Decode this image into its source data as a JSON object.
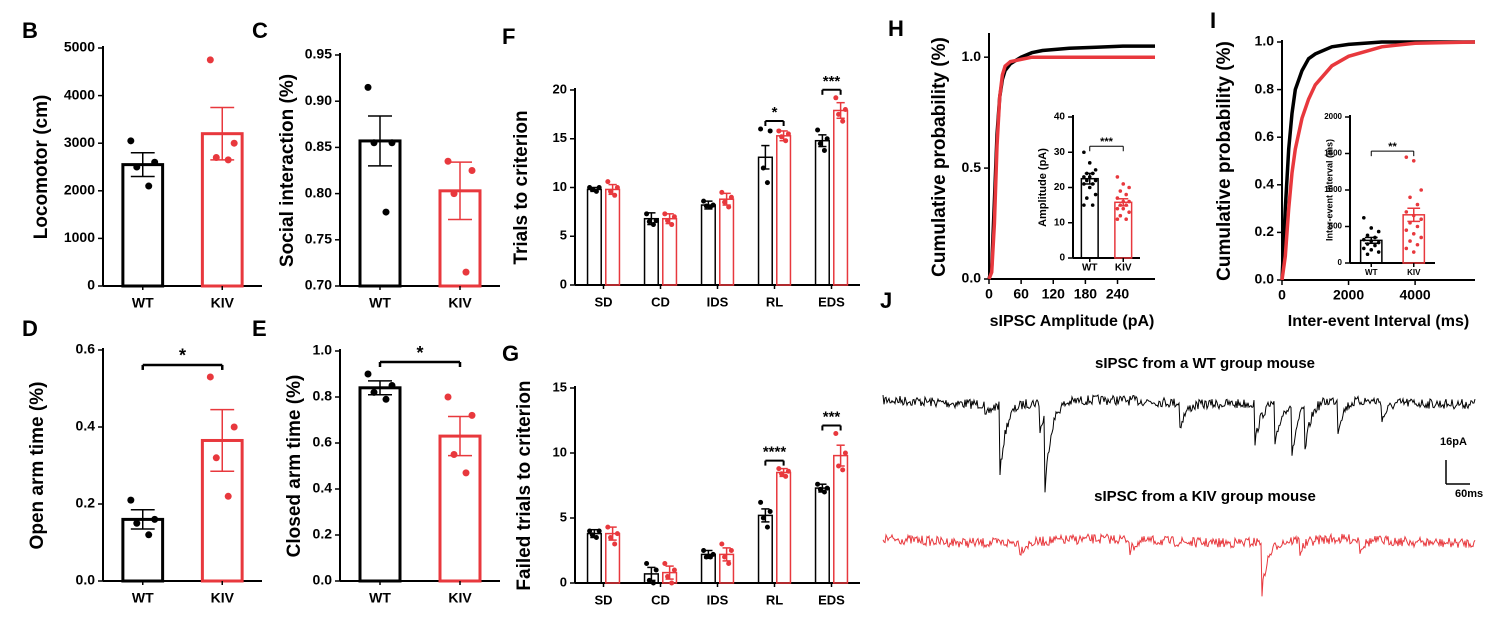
{
  "chart_data": [
    {
      "type": "bar",
      "panel": "B",
      "ylabel": "Locomotor (cm)",
      "categories": [
        "WT",
        "KIV"
      ],
      "colors": [
        "#000000",
        "#e8383d"
      ],
      "values": [
        2550,
        3200
      ],
      "errors": [
        250,
        550
      ],
      "points": [
        [
          3050,
          2600,
          2500,
          2100
        ],
        [
          4750,
          3000,
          2700,
          2650
        ]
      ],
      "ylim": [
        0,
        5000
      ],
      "yticks": [
        0,
        1000,
        2000,
        3000,
        4000,
        5000
      ]
    },
    {
      "type": "bar",
      "panel": "C",
      "ylabel": "Social interaction (%)",
      "categories": [
        "WT",
        "KIV"
      ],
      "colors": [
        "#000000",
        "#e8383d"
      ],
      "values": [
        0.857,
        0.803
      ],
      "errors": [
        0.027,
        0.031
      ],
      "points": [
        [
          0.915,
          0.855,
          0.855,
          0.78
        ],
        [
          0.835,
          0.825,
          0.8,
          0.715
        ]
      ],
      "ylim": [
        0.7,
        0.95
      ],
      "yticks": [
        {
          "value": 0.7,
          "label": "0.70"
        },
        0.75,
        {
          "value": 0.8,
          "label": "0.80"
        },
        0.85,
        {
          "value": 0.9,
          "label": "0.90"
        },
        0.95
      ]
    },
    {
      "type": "bar",
      "panel": "D",
      "ylabel": "Open arm time (%)",
      "categories": [
        "WT",
        "KIV"
      ],
      "colors": [
        "#000000",
        "#e8383d"
      ],
      "values": [
        0.16,
        0.365
      ],
      "errors": [
        0.025,
        0.08
      ],
      "points": [
        [
          0.21,
          0.16,
          0.15,
          0.12
        ],
        [
          0.53,
          0.4,
          0.32,
          0.22
        ]
      ],
      "annotation": "*",
      "ylim": [
        0,
        0.6
      ],
      "yticks": [
        {
          "value": 0,
          "label": "0.0"
        },
        0.2,
        0.4,
        0.6
      ]
    },
    {
      "type": "bar",
      "panel": "E",
      "ylabel": "Closed arm time (%)",
      "categories": [
        "WT",
        "KIV"
      ],
      "colors": [
        "#000000",
        "#e8383d"
      ],
      "values": [
        0.84,
        0.63
      ],
      "errors": [
        0.03,
        0.085
      ],
      "points": [
        [
          0.9,
          0.85,
          0.82,
          0.79
        ],
        [
          0.8,
          0.72,
          0.55,
          0.47
        ]
      ],
      "annotation": "*",
      "ylim": [
        0,
        1.0
      ],
      "yticks": [
        {
          "value": 0,
          "label": "0.0"
        },
        0.2,
        0.4,
        0.6,
        0.8,
        {
          "value": 1.0,
          "label": "1.0"
        }
      ]
    },
    {
      "type": "grouped-bar",
      "panel": "F",
      "ylabel": "Trials to criterion",
      "categories": [
        "SD",
        "CD",
        "IDS",
        "RL",
        "EDS"
      ],
      "series": [
        {
          "color": "#000000",
          "values": [
            9.8,
            6.8,
            8.2,
            13.1,
            14.8
          ],
          "errors": [
            0.2,
            0.6,
            0.4,
            1.2,
            0.6
          ],
          "points": [
            [
              10,
              10,
              9.8,
              9.6
            ],
            [
              7.3,
              6.6,
              6.5,
              6.2
            ],
            [
              8.6,
              8.2,
              8.1,
              8
            ],
            [
              16,
              15.8,
              12,
              10.5
            ],
            [
              15.9,
              15,
              14.5,
              13.8
            ]
          ]
        },
        {
          "color": "#e8383d",
          "values": [
            9.8,
            6.8,
            8.8,
            15.3,
            17.9
          ],
          "errors": [
            0.5,
            0.5,
            0.6,
            0.5,
            0.8
          ],
          "points": [
            [
              10.6,
              10,
              9.6,
              9.2
            ],
            [
              7.3,
              7,
              6.6,
              6.2
            ],
            [
              9.5,
              9,
              8.5,
              8
            ],
            [
              15.8,
              15.5,
              15.2,
              14.8
            ],
            [
              19.2,
              18,
              17.5,
              16.8
            ]
          ]
        }
      ],
      "annotations": [
        null,
        null,
        null,
        "*",
        "***"
      ],
      "ylim": [
        0,
        20
      ],
      "yticks": [
        0,
        5,
        10,
        15,
        20
      ]
    },
    {
      "type": "grouped-bar",
      "panel": "G",
      "ylabel": "Failed trials to criterion",
      "categories": [
        "SD",
        "CD",
        "IDS",
        "RL",
        "EDS"
      ],
      "series": [
        {
          "color": "#000000",
          "values": [
            3.8,
            0.7,
            2.2,
            5.2,
            7.3
          ],
          "errors": [
            0.3,
            0.5,
            0.3,
            0.5,
            0.3
          ],
          "points": [
            [
              4,
              4,
              3.7,
              3.5
            ],
            [
              1.5,
              1,
              0.2,
              0
            ],
            [
              2.5,
              2.2,
              2,
              2
            ],
            [
              6.2,
              5.5,
              5,
              4.3
            ],
            [
              7.6,
              7.3,
              7.2,
              7
            ]
          ]
        },
        {
          "color": "#e8383d",
          "values": [
            3.8,
            0.8,
            2.2,
            8.5,
            9.8
          ],
          "errors": [
            0.5,
            0.5,
            0.5,
            0.3,
            0.8
          ],
          "points": [
            [
              4.3,
              3.8,
              3.5,
              3
            ],
            [
              1.5,
              1,
              0.5,
              0
            ],
            [
              3,
              2.5,
              2,
              1.5
            ],
            [
              8.8,
              8.6,
              8.4,
              8.2
            ],
            [
              11.5,
              10,
              9,
              8.7
            ]
          ]
        }
      ],
      "annotations": [
        null,
        null,
        null,
        "****",
        "***"
      ],
      "ylim": [
        0,
        15
      ],
      "yticks": [
        0,
        5,
        10,
        15
      ]
    },
    {
      "type": "line",
      "panel": "H",
      "ylabel": "Cumulative probability (%)",
      "xlabel": "sIPSC Amplitude (pA)",
      "x": [
        0,
        5,
        10,
        15,
        20,
        25,
        30,
        40,
        60,
        80,
        100,
        150,
        200,
        250,
        310
      ],
      "series": [
        {
          "color": "#000000",
          "values": [
            0,
            0.05,
            0.35,
            0.65,
            0.82,
            0.9,
            0.94,
            0.97,
            1.0,
            1.02,
            1.03,
            1.04,
            1.045,
            1.05,
            1.05
          ]
        },
        {
          "color": "#e8383d",
          "values": [
            0,
            0.03,
            0.25,
            0.6,
            0.82,
            0.92,
            0.96,
            0.98,
            0.99,
            1.0,
            1.0,
            1.0,
            1.0,
            1.0,
            1.0
          ]
        }
      ],
      "xlim": [
        0,
        310
      ],
      "xticks": [
        0,
        60,
        120,
        180,
        240
      ],
      "ylim": [
        0,
        1.1
      ],
      "yticks": [
        {
          "value": 0,
          "label": "0.0"
        },
        0.5,
        {
          "value": 1.0,
          "label": "1.0"
        }
      ],
      "inset": {
        "type": "bar",
        "ylabel": "Amplitude (pA)",
        "categories": [
          "WT",
          "KIV"
        ],
        "colors": [
          "#000000",
          "#e8383d"
        ],
        "values": [
          22.5,
          15.8
        ],
        "errors": [
          1.5,
          1.0
        ],
        "points": [
          [
            30,
            27,
            25,
            24,
            24,
            23,
            23,
            22,
            22,
            21,
            21,
            20,
            18,
            17,
            15,
            15
          ],
          [
            23,
            21,
            20,
            19,
            18,
            17,
            16,
            16,
            15,
            15,
            14,
            14,
            13,
            12,
            11,
            11
          ]
        ],
        "annotation": "***",
        "ylim": [
          0,
          40
        ],
        "yticks": [
          0,
          10,
          20,
          30,
          40
        ]
      }
    },
    {
      "type": "line",
      "panel": "I",
      "ylabel": "Cumulative probability (%)",
      "xlabel": "Inter-event Interval (ms)",
      "x": [
        0,
        100,
        200,
        300,
        400,
        600,
        800,
        1000,
        1500,
        2000,
        3000,
        4000,
        5800
      ],
      "series": [
        {
          "color": "#000000",
          "values": [
            0,
            0.3,
            0.55,
            0.7,
            0.8,
            0.88,
            0.93,
            0.95,
            0.98,
            0.99,
            1.0,
            1.0,
            1.0
          ]
        },
        {
          "color": "#e8383d",
          "values": [
            0,
            0.1,
            0.3,
            0.45,
            0.55,
            0.68,
            0.76,
            0.82,
            0.9,
            0.94,
            0.98,
            0.995,
            1.0
          ]
        }
      ],
      "xlim": [
        0,
        5800
      ],
      "xticks": [
        0,
        2000,
        4000
      ],
      "ylim": [
        0,
        1.0
      ],
      "yticks": [
        {
          "value": 0,
          "label": "0.0"
        },
        0.2,
        0.4,
        0.6,
        0.8,
        {
          "value": 1.0,
          "label": "1.0"
        }
      ],
      "inset": {
        "type": "bar",
        "ylabel": "Inter-event Interval (ms)",
        "categories": [
          "WT",
          "KIV"
        ],
        "colors": [
          "#000000",
          "#e8383d"
        ],
        "values": [
          310,
          660
        ],
        "errors": [
          40,
          90
        ],
        "points": [
          [
            620,
            480,
            430,
            380,
            350,
            320,
            300,
            280,
            260,
            240,
            200,
            180,
            150,
            120
          ],
          [
            1450,
            1400,
            1000,
            900,
            800,
            700,
            650,
            600,
            550,
            500,
            450,
            400,
            350,
            300,
            250,
            200,
            150
          ]
        ],
        "annotation": "**",
        "ylim": [
          0,
          2000
        ],
        "yticks": [
          0,
          500,
          1000,
          1500,
          2000
        ]
      }
    }
  ],
  "traces": {
    "panel": "J",
    "wt_title": "sIPSC  from a WT group mouse",
    "kiv_title": "sIPSC  from a KIV group mouse",
    "scale_amplitude": "16pA",
    "scale_time": "60ms"
  }
}
